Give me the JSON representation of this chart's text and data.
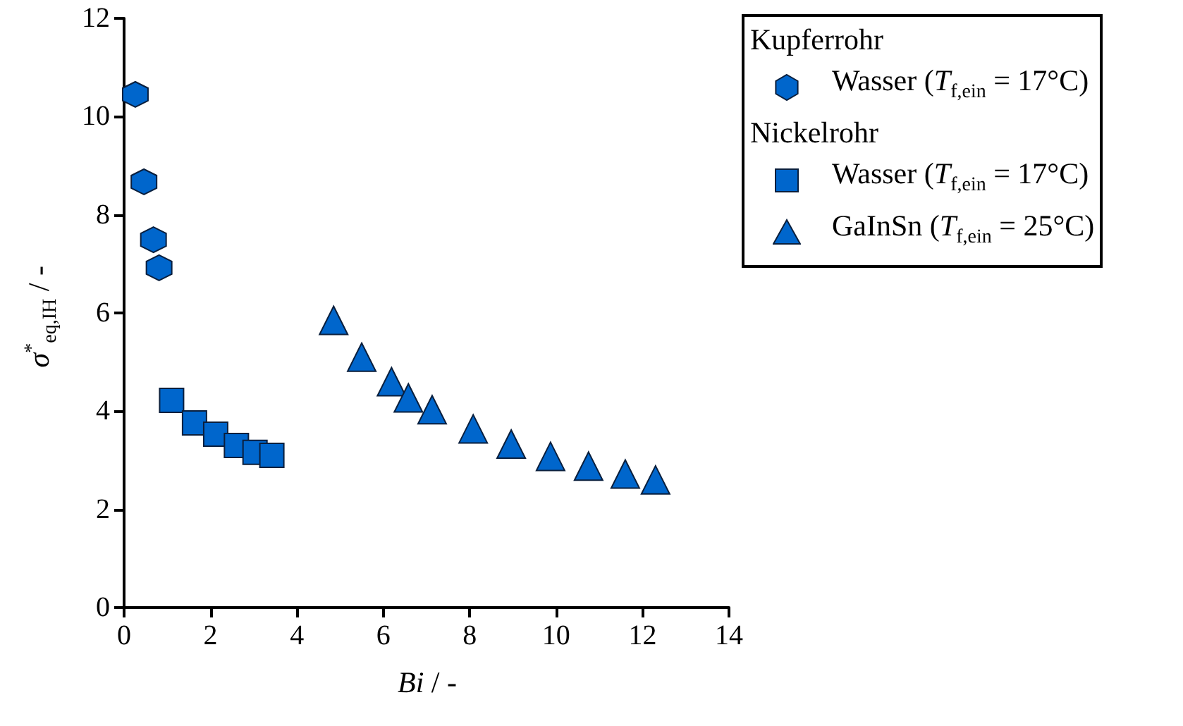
{
  "chart_data": {
    "type": "scatter",
    "xlabel": "Bi / -",
    "ylabel": "σ$^{*}$$_{eq,IH}$ / -",
    "annotations": [
      "Kupferrohr",
      "Nickelrohr"
    ],
    "series": [
      {
        "name": "Wasser (T$_{f,ein}$ = 17°C)",
        "color": "#0066cc",
        "x": [
          0.26,
          0.46,
          0.68,
          0.81
        ],
        "values": [
          10.45,
          8.67,
          7.49,
          6.92
        ]
      },
      {
        "name": "Wasser (T$_{f,ein}$ = 17°C)",
        "color": "#0066cc",
        "marker": "square",
        "x": [
          1.1,
          1.63,
          2.12,
          2.6,
          3.03,
          3.42
        ],
        "values": [
          4.22,
          3.76,
          3.53,
          3.3,
          3.16,
          3.1
        ]
      },
      {
        "name": "GaInSn (T$_{f,ein}$ = 25°C)",
        "color": "#0066cc",
        "marker": "triangle",
        "x": [
          4.85,
          5.5,
          6.19,
          6.58,
          7.13,
          8.08,
          8.96,
          9.87,
          10.75,
          11.6,
          12.3
        ],
        "values": [
          5.85,
          5.1,
          4.6,
          4.27,
          4.03,
          3.64,
          3.33,
          3.08,
          2.88,
          2.72,
          2.6
        ]
      }
    ],
    "xlim": [
      0,
      14
    ],
    "xticks": [
      0,
      2,
      4,
      6,
      8,
      10,
      12,
      14
    ],
    "ylim": [
      0,
      12
    ],
    "yticks": [
      0,
      2,
      4,
      6,
      8,
      10,
      12
    ],
    "legend": "right",
    "grid": false
  }
}
